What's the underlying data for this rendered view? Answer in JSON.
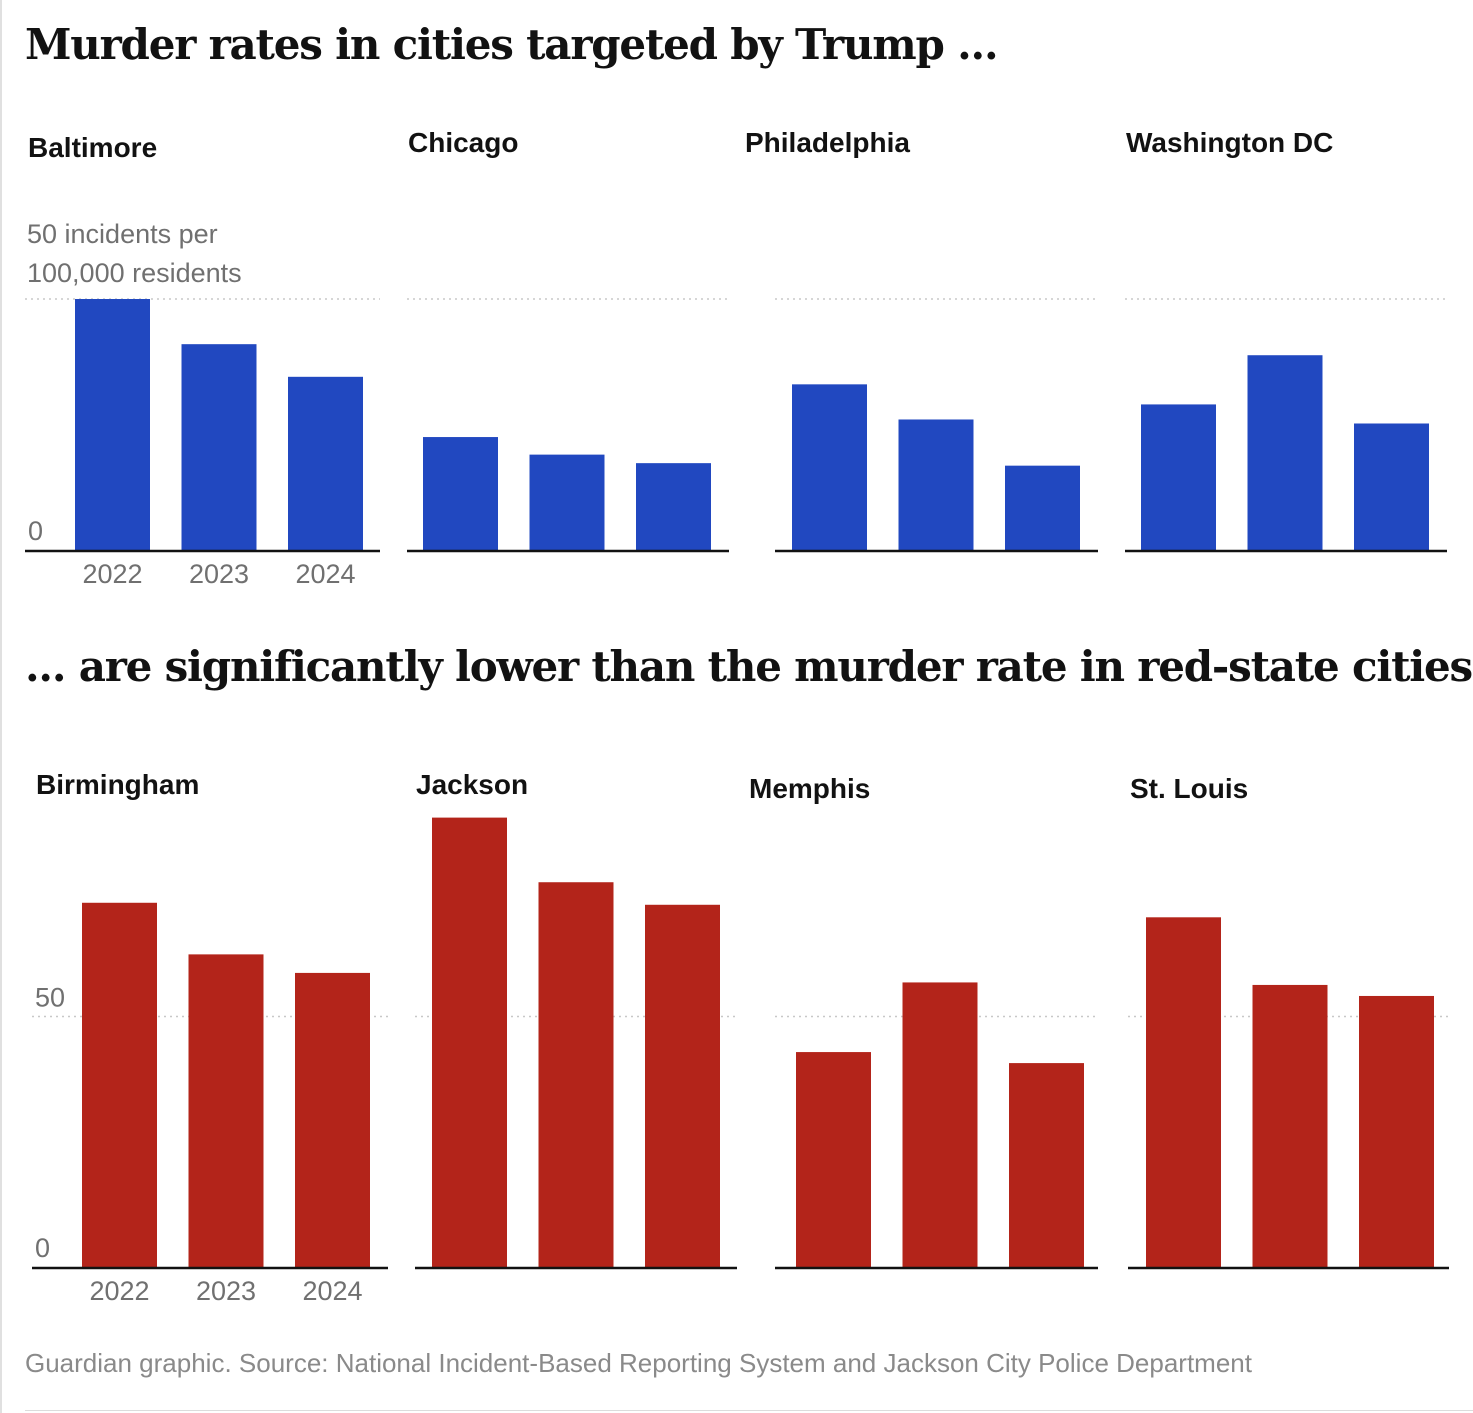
{
  "title_top": "Murder rates in cities targeted by Trump ...",
  "title_bottom": "... are significantly lower than the murder rate in red-state cities",
  "source": "Guardian graphic. Source: National Incident-Based Reporting System and Jackson City Police Department",
  "colors": {
    "blue": "#2148c0",
    "red": "#b3241a",
    "axis": "#121212",
    "grid": "#c8c8c8"
  },
  "chart_data": [
    {
      "type": "bar",
      "group": "cities targeted by Trump",
      "categories": [
        "2022",
        "2023",
        "2024"
      ],
      "color": "blue",
      "ylim": [
        0,
        50
      ],
      "yticks": [
        "0"
      ],
      "y_unit_label": [
        "50 incidents per",
        "100,000 residents"
      ],
      "panels": [
        {
          "city": "Baltimore",
          "values": [
            50,
            41,
            34.5
          ]
        },
        {
          "city": "Chicago",
          "values": [
            22.5,
            19,
            17.3
          ]
        },
        {
          "city": "Philadelphia",
          "values": [
            33,
            26,
            16.8
          ]
        },
        {
          "city": "Washington DC",
          "values": [
            29,
            38.8,
            25.2
          ]
        }
      ]
    },
    {
      "type": "bar",
      "group": "red-state cities",
      "categories": [
        "2022",
        "2023",
        "2024"
      ],
      "color": "red",
      "ylim": [
        0,
        100
      ],
      "yticks": [
        "0",
        "50"
      ],
      "panels": [
        {
          "city": "Birmingham",
          "values": [
            72.7,
            62.4,
            58.7
          ]
        },
        {
          "city": "Jackson",
          "values": [
            89.7,
            76.8,
            72.3
          ]
        },
        {
          "city": "Memphis",
          "values": [
            42.9,
            56.8,
            40.7
          ]
        },
        {
          "city": "St. Louis",
          "values": [
            69.8,
            56.3,
            54.1
          ]
        }
      ]
    }
  ]
}
